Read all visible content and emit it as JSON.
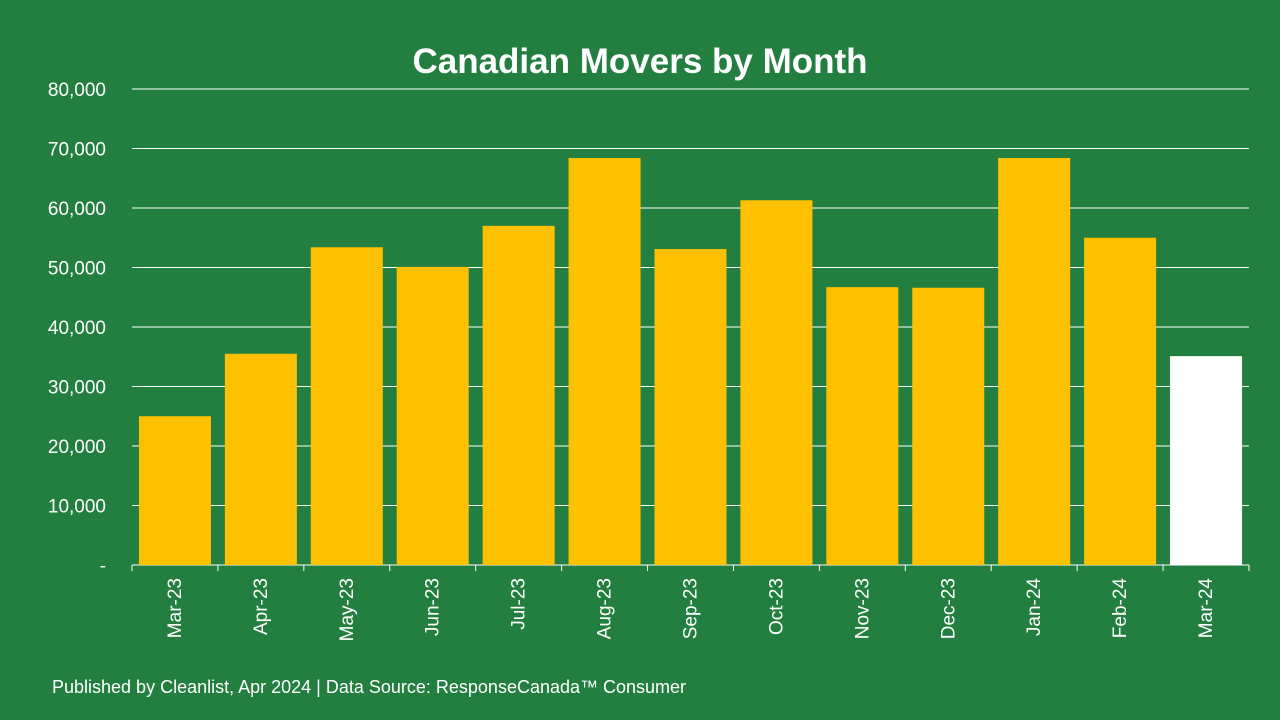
{
  "chart_data": {
    "type": "bar",
    "title": "Canadian Movers by Month",
    "xlabel": "",
    "ylabel": "",
    "categories": [
      "Mar-23",
      "Apr-23",
      "May-23",
      "Jun-23",
      "Jul-23",
      "Aug-23",
      "Sep-23",
      "Oct-23",
      "Nov-23",
      "Dec-23",
      "Jan-24",
      "Feb-24",
      "Mar-24"
    ],
    "values": [
      25000,
      35500,
      53400,
      50100,
      57000,
      68400,
      53100,
      61300,
      46700,
      46600,
      68400,
      55000,
      35100
    ],
    "ylim": [
      0,
      80000
    ],
    "yticks": [
      0,
      10000,
      20000,
      30000,
      40000,
      50000,
      60000,
      70000,
      80000
    ],
    "ytick_labels": [
      "-",
      "10,000",
      "20,000",
      "30,000",
      "40,000",
      "50,000",
      "60,000",
      "70,000",
      "80,000"
    ],
    "grid": true,
    "bar_color": "#ffc000",
    "highlight_color": "#ffffff",
    "highlight_index": 12
  },
  "footer": "Published by Cleanlist, Apr 2024 | Data Source: ResponseCanada™ Consumer"
}
